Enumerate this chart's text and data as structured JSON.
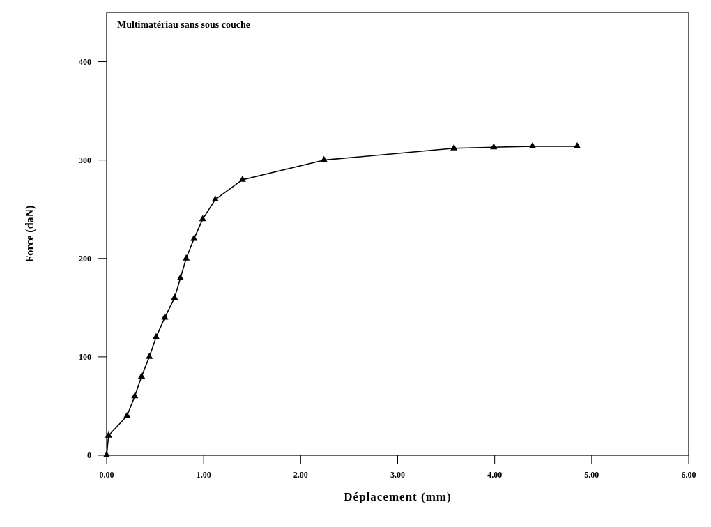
{
  "chart_data": {
    "type": "line",
    "title": "Multimatériau sans sous couche",
    "xlabel": "Déplacement (mm)",
    "ylabel": "Force (daN)",
    "x": [
      0,
      0.02,
      0.21,
      0.29,
      0.36,
      0.44,
      0.51,
      0.6,
      0.7,
      0.76,
      0.82,
      0.9,
      0.99,
      1.12,
      1.4,
      2.24,
      3.58,
      3.99,
      4.39,
      4.85
    ],
    "series": [
      {
        "color": "#000000",
        "values": [
          0,
          20,
          40,
          60,
          80,
          100,
          120,
          140,
          160,
          180,
          200,
          220,
          240,
          260,
          280,
          300,
          312,
          313,
          314,
          314
        ]
      }
    ],
    "xlim": [
      0,
      6
    ],
    "xticks": [
      {
        "value": 0,
        "label": "0.00"
      },
      {
        "value": 1,
        "label": "1.00"
      },
      {
        "value": 2,
        "label": "2.00"
      },
      {
        "value": 3,
        "label": "3.00"
      },
      {
        "value": 4,
        "label": "4.00"
      },
      {
        "value": 5,
        "label": "5.00"
      },
      {
        "value": 6,
        "label": "6.00"
      }
    ],
    "ylim": [
      0,
      450
    ],
    "yticks": [
      0,
      100,
      200,
      300,
      400
    ],
    "grid": false,
    "marker": "triangle",
    "line_style": "solid"
  }
}
